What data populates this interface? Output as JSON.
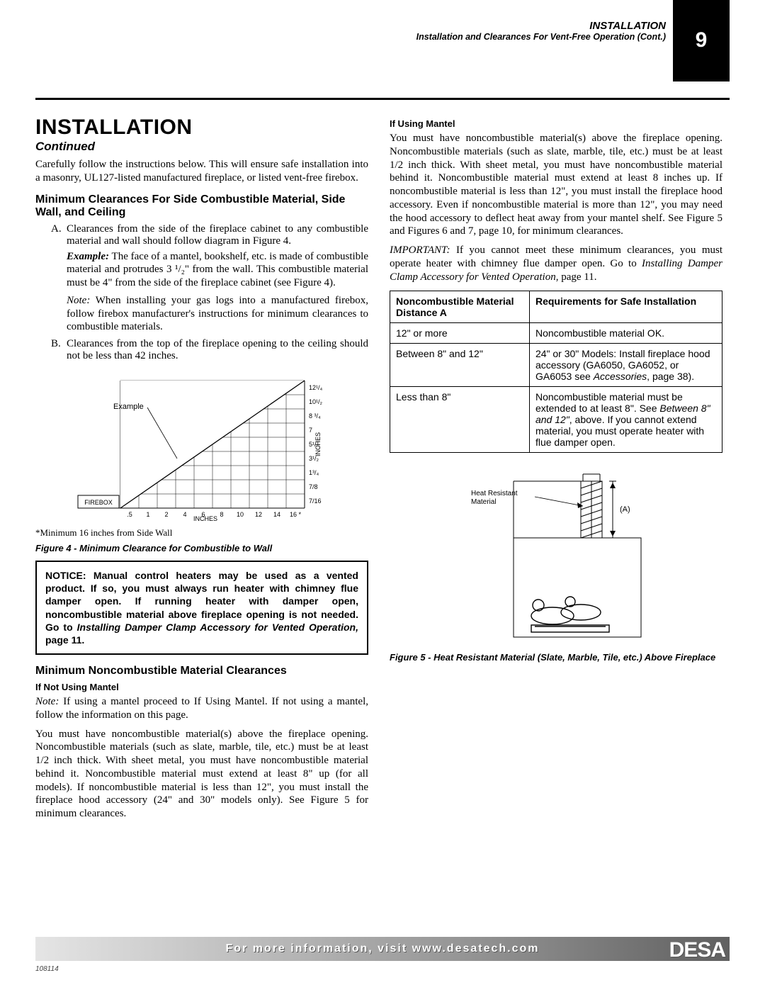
{
  "header": {
    "section": "INSTALLATION",
    "subtitle": "Installation and Clearances For Vent-Free Operation (Cont.)",
    "page_number": "9"
  },
  "left": {
    "title": "INSTALLATION",
    "continued": "Continued",
    "intro": "Carefully follow the instructions below. This will ensure safe installation into a masonry, UL127-listed manufactured fireplace, or listed vent-free firebox.",
    "sub1": "Minimum Clearances For Side Combustible Material, Side Wall, and Ceiling",
    "A_text": "Clearances from the side of the fireplace cabinet to any combustible material and wall should follow diagram in Figure 4.",
    "A_example_label": "Example:",
    "A_example": " The face of a mantel, bookshelf, etc. is made of combustible material and protrudes 3 ¹/₂\" from the wall. This combustible material must be 4\" from the side of the fireplace cabinet (see Figure 4).",
    "A_note_label": "Note:",
    "A_note": " When installing your gas logs into a manufactured firebox, follow firebox manufacturer's instructions for minimum clearances to combustible materials.",
    "B_text": "Clearances from the top of the fireplace opening to the ceiling should not be less than 42 inches.",
    "fig4_footnote": "*Minimum 16 inches from Side Wall",
    "fig4_caption": "Figure 4 - Minimum Clearance for Combustible to Wall",
    "notice": "NOTICE: Manual control heaters may be used as a vented product. If so, you must always run heater with chimney flue damper open. If running heater with damper open, noncombustible material above fireplace opening is not needed. Go to ",
    "notice_em": "Installing Damper Clamp Accessory for Vented Operation,",
    "notice_tail": " page 11.",
    "sub2": "Minimum Noncombustible Material Clearances",
    "if_not_mantel": "If Not Using Mantel",
    "note2_label": "Note:",
    "note2": " If using a mantel proceed to If Using Mantel. If not using a mantel, follow the information on this page.",
    "para2": "You must have noncombustible material(s) above the fireplace opening. Noncombustible materials (such as slate, marble, tile, etc.) must be at least 1/2 inch thick. With sheet metal, you must have noncombustible material behind it. Noncombustible material must extend at least 8\" up (for all models). If noncombustible material is less than 12\", you must install the fireplace hood accessory (24\" and 30\" models only). See Figure 5 for minimum clearances."
  },
  "right": {
    "if_using_mantel": "If Using Mantel",
    "para1": "You must have noncombustible material(s) above the fireplace opening. Noncombustible materials (such as slate, marble, tile, etc.) must be at least 1/2 inch thick. With sheet metal, you must have noncombustible material behind it. Noncombustible material must extend at least 8 inches up. If noncombustible material is less than 12\", you must install the fireplace hood accessory. Even if noncombustible material is more than 12\", you may need the hood accessory to deflect heat away from your mantel shelf. See Figure 5 and Figures 6 and 7, page 10, for minimum clearances.",
    "important_label": "IMPORTANT:",
    "important": " If you cannot meet these minimum clearances, you must operate heater with chimney flue damper open. Go to ",
    "important_em": "Installing Damper Clamp Accessory for Vented Operation",
    "important_tail": ", page 11.",
    "table": {
      "h1": "Noncombustible Material Distance A",
      "h2": "Requirements for Safe Installation",
      "r1c1": "12\" or more",
      "r1c2": "Noncombustible material OK.",
      "r2c1": "Between 8\" and 12\"",
      "r2c2a": "24\" or 30\" Models: Install fireplace hood accessory (GA6050, GA6052, or GA6053 see ",
      "r2c2em": "Accessories",
      "r2c2b": ", page 38).",
      "r3c1": "Less than 8\"",
      "r3c2a": "Noncombustible material must be extended to at least 8\". See ",
      "r3c2em": "Between 8\" and 12\"",
      "r3c2b": ", above. If you cannot extend material, you must operate heater with flue damper open."
    },
    "fig5_caption": "Figure 5 - Heat Resistant Material (Slate, Marble, Tile, etc.) Above Fireplace"
  },
  "fig4": {
    "example_label": "Example",
    "firebox_label": "FIREBOX",
    "x_axis": "INCHES",
    "y_axis": "INCHES",
    "x_ticks": [
      ".5",
      "1",
      "2",
      "4",
      "6",
      "8",
      "10",
      "12",
      "14",
      "16 *"
    ],
    "y_ticks": [
      "7/16",
      "7/8",
      "1³/₄",
      "3¹/₂",
      "5¹/₄",
      "7",
      "8 ³/₄",
      "10¹/₂",
      "12¹/₄"
    ]
  },
  "fig5": {
    "label1": "Heat Resistant",
    "label2": "Material",
    "a_label": "(A)"
  },
  "footer": {
    "text": "For more information, visit www.desatech.com",
    "brand": "DESA",
    "docnum": "108114"
  }
}
